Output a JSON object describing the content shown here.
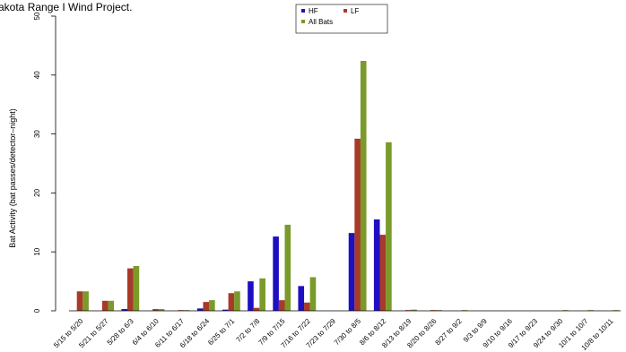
{
  "chart_data": {
    "type": "bar",
    "title": "akota Range I Wind Project.",
    "xlabel": "",
    "ylabel": "Bat Activity (bat passes/detector–night)",
    "ylim": [
      0,
      50
    ],
    "yticks": [
      "0",
      "10",
      "20",
      "30",
      "40",
      "50"
    ],
    "legend_position": "top-center",
    "categories": [
      "5/15 to 5/20",
      "5/21 to 5/27",
      "5/28 to 6/3",
      "6/4 to 6/10",
      "6/11 to 6/17",
      "6/18 to 6/24",
      "6/25 to 7/1",
      "7/2 to 7/8",
      "7/9 to 7/15",
      "7/16 to 7/22",
      "7/23 to 7/29",
      "7/30 to 8/5",
      "8/6 to 8/12",
      "8/13 to 8/19",
      "8/20 to 8/26",
      "8/27 to 9/2",
      "9/3 to 9/9",
      "9/10 to 9/16",
      "9/17 to 9/23",
      "9/24 to 9/30",
      "10/1 to 10/7",
      "10/8 to 10/11"
    ],
    "series": [
      {
        "name": "HF",
        "color": "#1f0fc2",
        "values": [
          0,
          0,
          0.3,
          0,
          0,
          0.4,
          0.2,
          5.0,
          12.6,
          4.2,
          0,
          13.2,
          15.5,
          0,
          0,
          0,
          0,
          0,
          0,
          0,
          0,
          0
        ]
      },
      {
        "name": "LF",
        "color": "#a83a2a",
        "values": [
          3.3,
          1.7,
          7.2,
          0.3,
          0.1,
          1.5,
          3.0,
          0.5,
          1.8,
          1.4,
          0,
          29.2,
          12.9,
          0.1,
          0.05,
          0,
          0,
          0,
          0,
          0,
          0,
          0
        ]
      },
      {
        "name": "All Bats",
        "color": "#7a9a2a",
        "values": [
          3.3,
          1.7,
          7.6,
          0.3,
          0.1,
          1.8,
          3.3,
          5.5,
          14.6,
          5.7,
          0,
          42.4,
          28.6,
          0.2,
          0.1,
          0.05,
          0,
          0,
          0,
          0.05,
          0.05,
          0.05
        ]
      }
    ]
  }
}
